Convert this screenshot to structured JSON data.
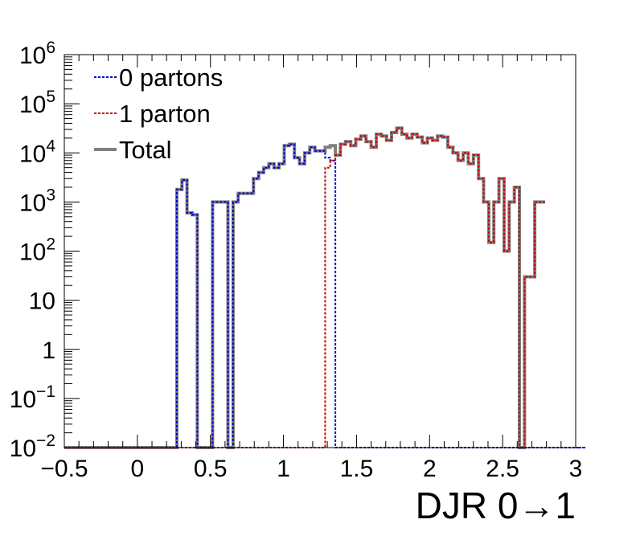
{
  "chart_data": {
    "type": "line",
    "title": "",
    "xlabel": "DJR 0→1",
    "ylabel": "",
    "xlim": [
      -0.5,
      3.0
    ],
    "ylim": [
      0.01,
      1000000
    ],
    "y_scale": "log",
    "grid": false,
    "legend_position": "top-left",
    "x_ticks": [
      {
        "value": -0.5,
        "label": "−0.5"
      },
      {
        "value": 0,
        "label": "0"
      },
      {
        "value": 0.5,
        "label": "0.5"
      },
      {
        "value": 1,
        "label": "1"
      },
      {
        "value": 1.5,
        "label": "1.5"
      },
      {
        "value": 2,
        "label": "2"
      },
      {
        "value": 2.5,
        "label": "2.5"
      },
      {
        "value": 3,
        "label": "3"
      }
    ],
    "y_ticks": [
      {
        "value": 0.01,
        "base": "10",
        "exp": "−2"
      },
      {
        "value": 0.1,
        "base": "10",
        "exp": "−1"
      },
      {
        "value": 1,
        "base": "1",
        "exp": ""
      },
      {
        "value": 10,
        "base": "10",
        "exp": ""
      },
      {
        "value": 100,
        "base": "10",
        "exp": "2"
      },
      {
        "value": 1000,
        "base": "10",
        "exp": "3"
      },
      {
        "value": 10000,
        "base": "10",
        "exp": "4"
      },
      {
        "value": 100000,
        "base": "10",
        "exp": "5"
      },
      {
        "value": 1000000,
        "base": "10",
        "exp": "6"
      }
    ],
    "bin_edges_start": -0.5,
    "bin_width": 0.035,
    "series": [
      {
        "name": "0 partons",
        "color": "#0000cc",
        "dash": "dotted",
        "values": [
          0,
          0,
          0,
          0,
          0,
          0,
          0,
          0,
          0,
          0,
          0,
          0,
          0,
          0,
          0,
          0,
          0,
          0,
          0,
          0,
          0,
          0,
          1800,
          2800,
          600,
          550,
          0,
          0,
          0,
          1000,
          1000,
          1000,
          0,
          1000,
          1500,
          1500,
          1500,
          3000,
          4000,
          5000,
          6000,
          5000,
          6000,
          14000,
          15000,
          8000,
          6000,
          10000,
          13000,
          11000,
          11000,
          8000,
          7000,
          0,
          0,
          0,
          0,
          0,
          0,
          0,
          0,
          0,
          0,
          0,
          0,
          0,
          0,
          0,
          0,
          0,
          0,
          0,
          0,
          0,
          0,
          0,
          0,
          0,
          0,
          0,
          0,
          0,
          0,
          0,
          0,
          0,
          0,
          0,
          0,
          0,
          0,
          0,
          0,
          0,
          0,
          0,
          0,
          0,
          0,
          0,
          0,
          0,
          0
        ]
      },
      {
        "name": "1 parton",
        "color": "#cc0000",
        "dash": "dotted",
        "values": [
          0,
          0,
          0,
          0,
          0,
          0,
          0,
          0,
          0,
          0,
          0,
          0,
          0,
          0,
          0,
          0,
          0,
          0,
          0,
          0,
          0,
          0,
          0,
          0,
          0,
          0,
          0,
          0,
          0,
          0,
          0,
          0,
          0,
          0,
          0,
          0,
          0,
          0,
          0,
          0,
          0,
          0,
          0,
          0,
          0,
          0,
          0,
          0,
          0,
          0,
          0,
          5000,
          7000,
          9000,
          15000,
          17000,
          14000,
          19000,
          22000,
          17000,
          13000,
          24000,
          22000,
          18000,
          26000,
          32000,
          24000,
          20000,
          24000,
          21000,
          16000,
          20000,
          18000,
          22000,
          21000,
          13000,
          10000,
          7000,
          10000,
          6000,
          9000,
          3000,
          1000,
          150,
          1000,
          3000,
          100,
          1000,
          2000,
          0,
          30,
          30,
          1000,
          1000
        ]
      },
      {
        "name": "Total",
        "color": "#808080",
        "dash": "solid",
        "values": [
          0,
          0,
          0,
          0,
          0,
          0,
          0,
          0,
          0,
          0,
          0,
          0,
          0,
          0,
          0,
          0,
          0,
          0,
          0,
          0,
          0,
          0,
          1800,
          2800,
          600,
          550,
          0,
          0,
          0,
          1000,
          1000,
          1000,
          0,
          1000,
          1500,
          1500,
          1500,
          3000,
          4000,
          5000,
          6000,
          5000,
          6000,
          14000,
          15000,
          8000,
          6000,
          10000,
          13000,
          11000,
          11000,
          13000,
          14000,
          9000,
          15000,
          17000,
          14000,
          19000,
          22000,
          17000,
          13000,
          24000,
          22000,
          18000,
          26000,
          32000,
          24000,
          20000,
          24000,
          21000,
          16000,
          20000,
          18000,
          22000,
          21000,
          13000,
          10000,
          7000,
          10000,
          6000,
          9000,
          3000,
          1000,
          150,
          1000,
          3000,
          100,
          1000,
          2000,
          0,
          30,
          30,
          1000,
          1000
        ]
      }
    ]
  }
}
